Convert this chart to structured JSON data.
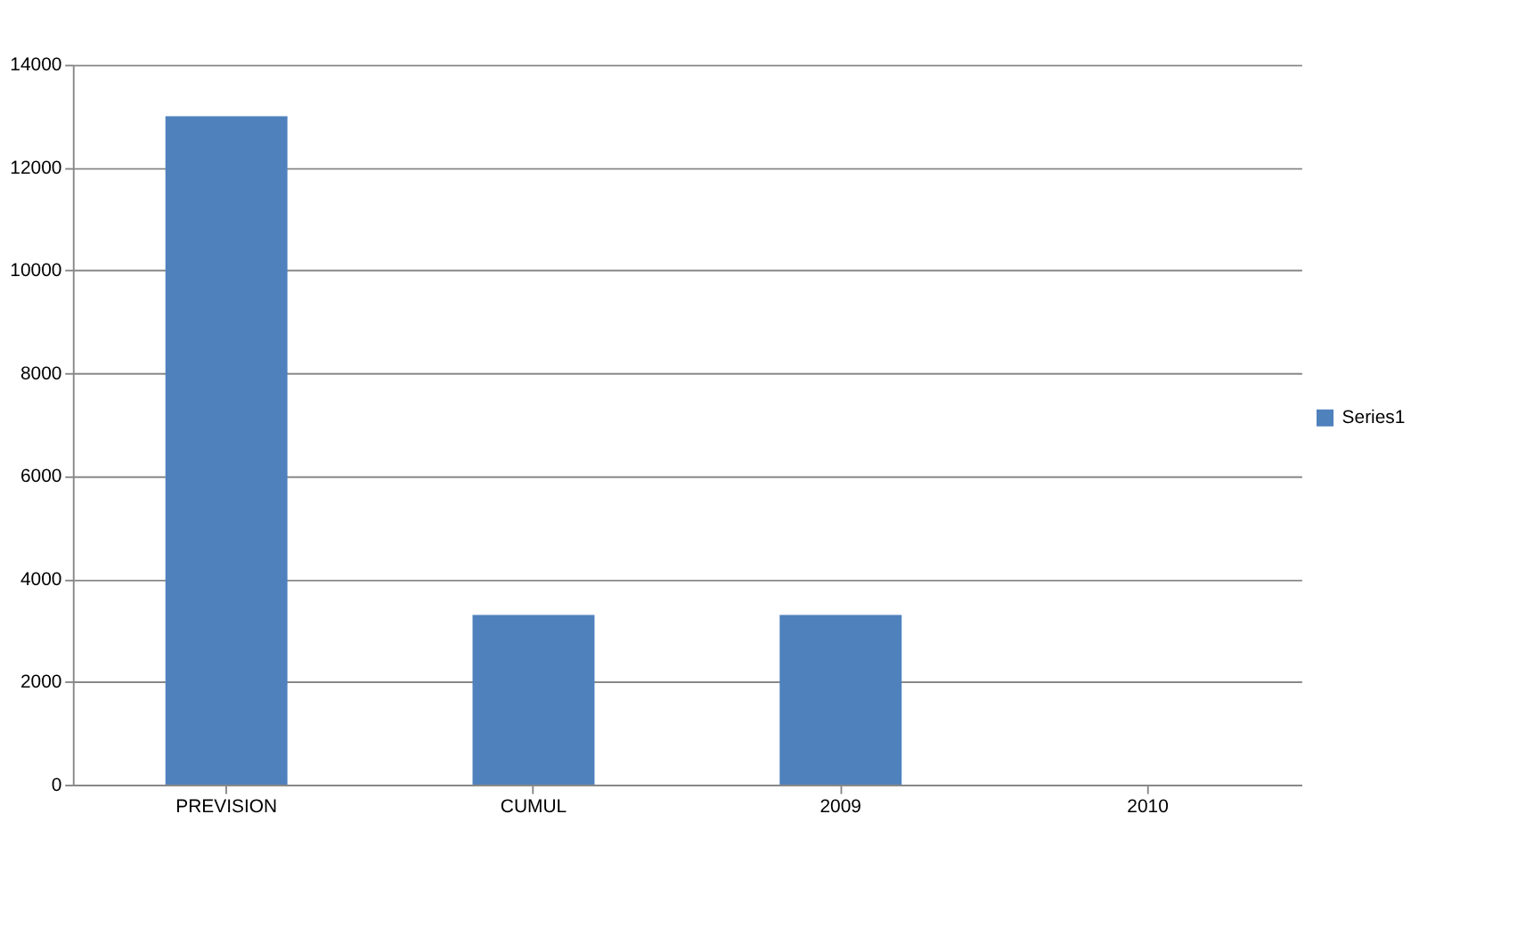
{
  "chart_data": {
    "type": "bar",
    "categories": [
      "PREVISION",
      "CUMUL",
      "2009",
      "2010"
    ],
    "series": [
      {
        "name": "Series1",
        "color": "#4f81bd",
        "values": [
          13000,
          3300,
          3300,
          0
        ]
      }
    ],
    "ylim": [
      0,
      14000
    ],
    "yticks": [
      0,
      2000,
      4000,
      6000,
      8000,
      10000,
      12000,
      14000
    ],
    "grid": "y",
    "legend": "right"
  }
}
